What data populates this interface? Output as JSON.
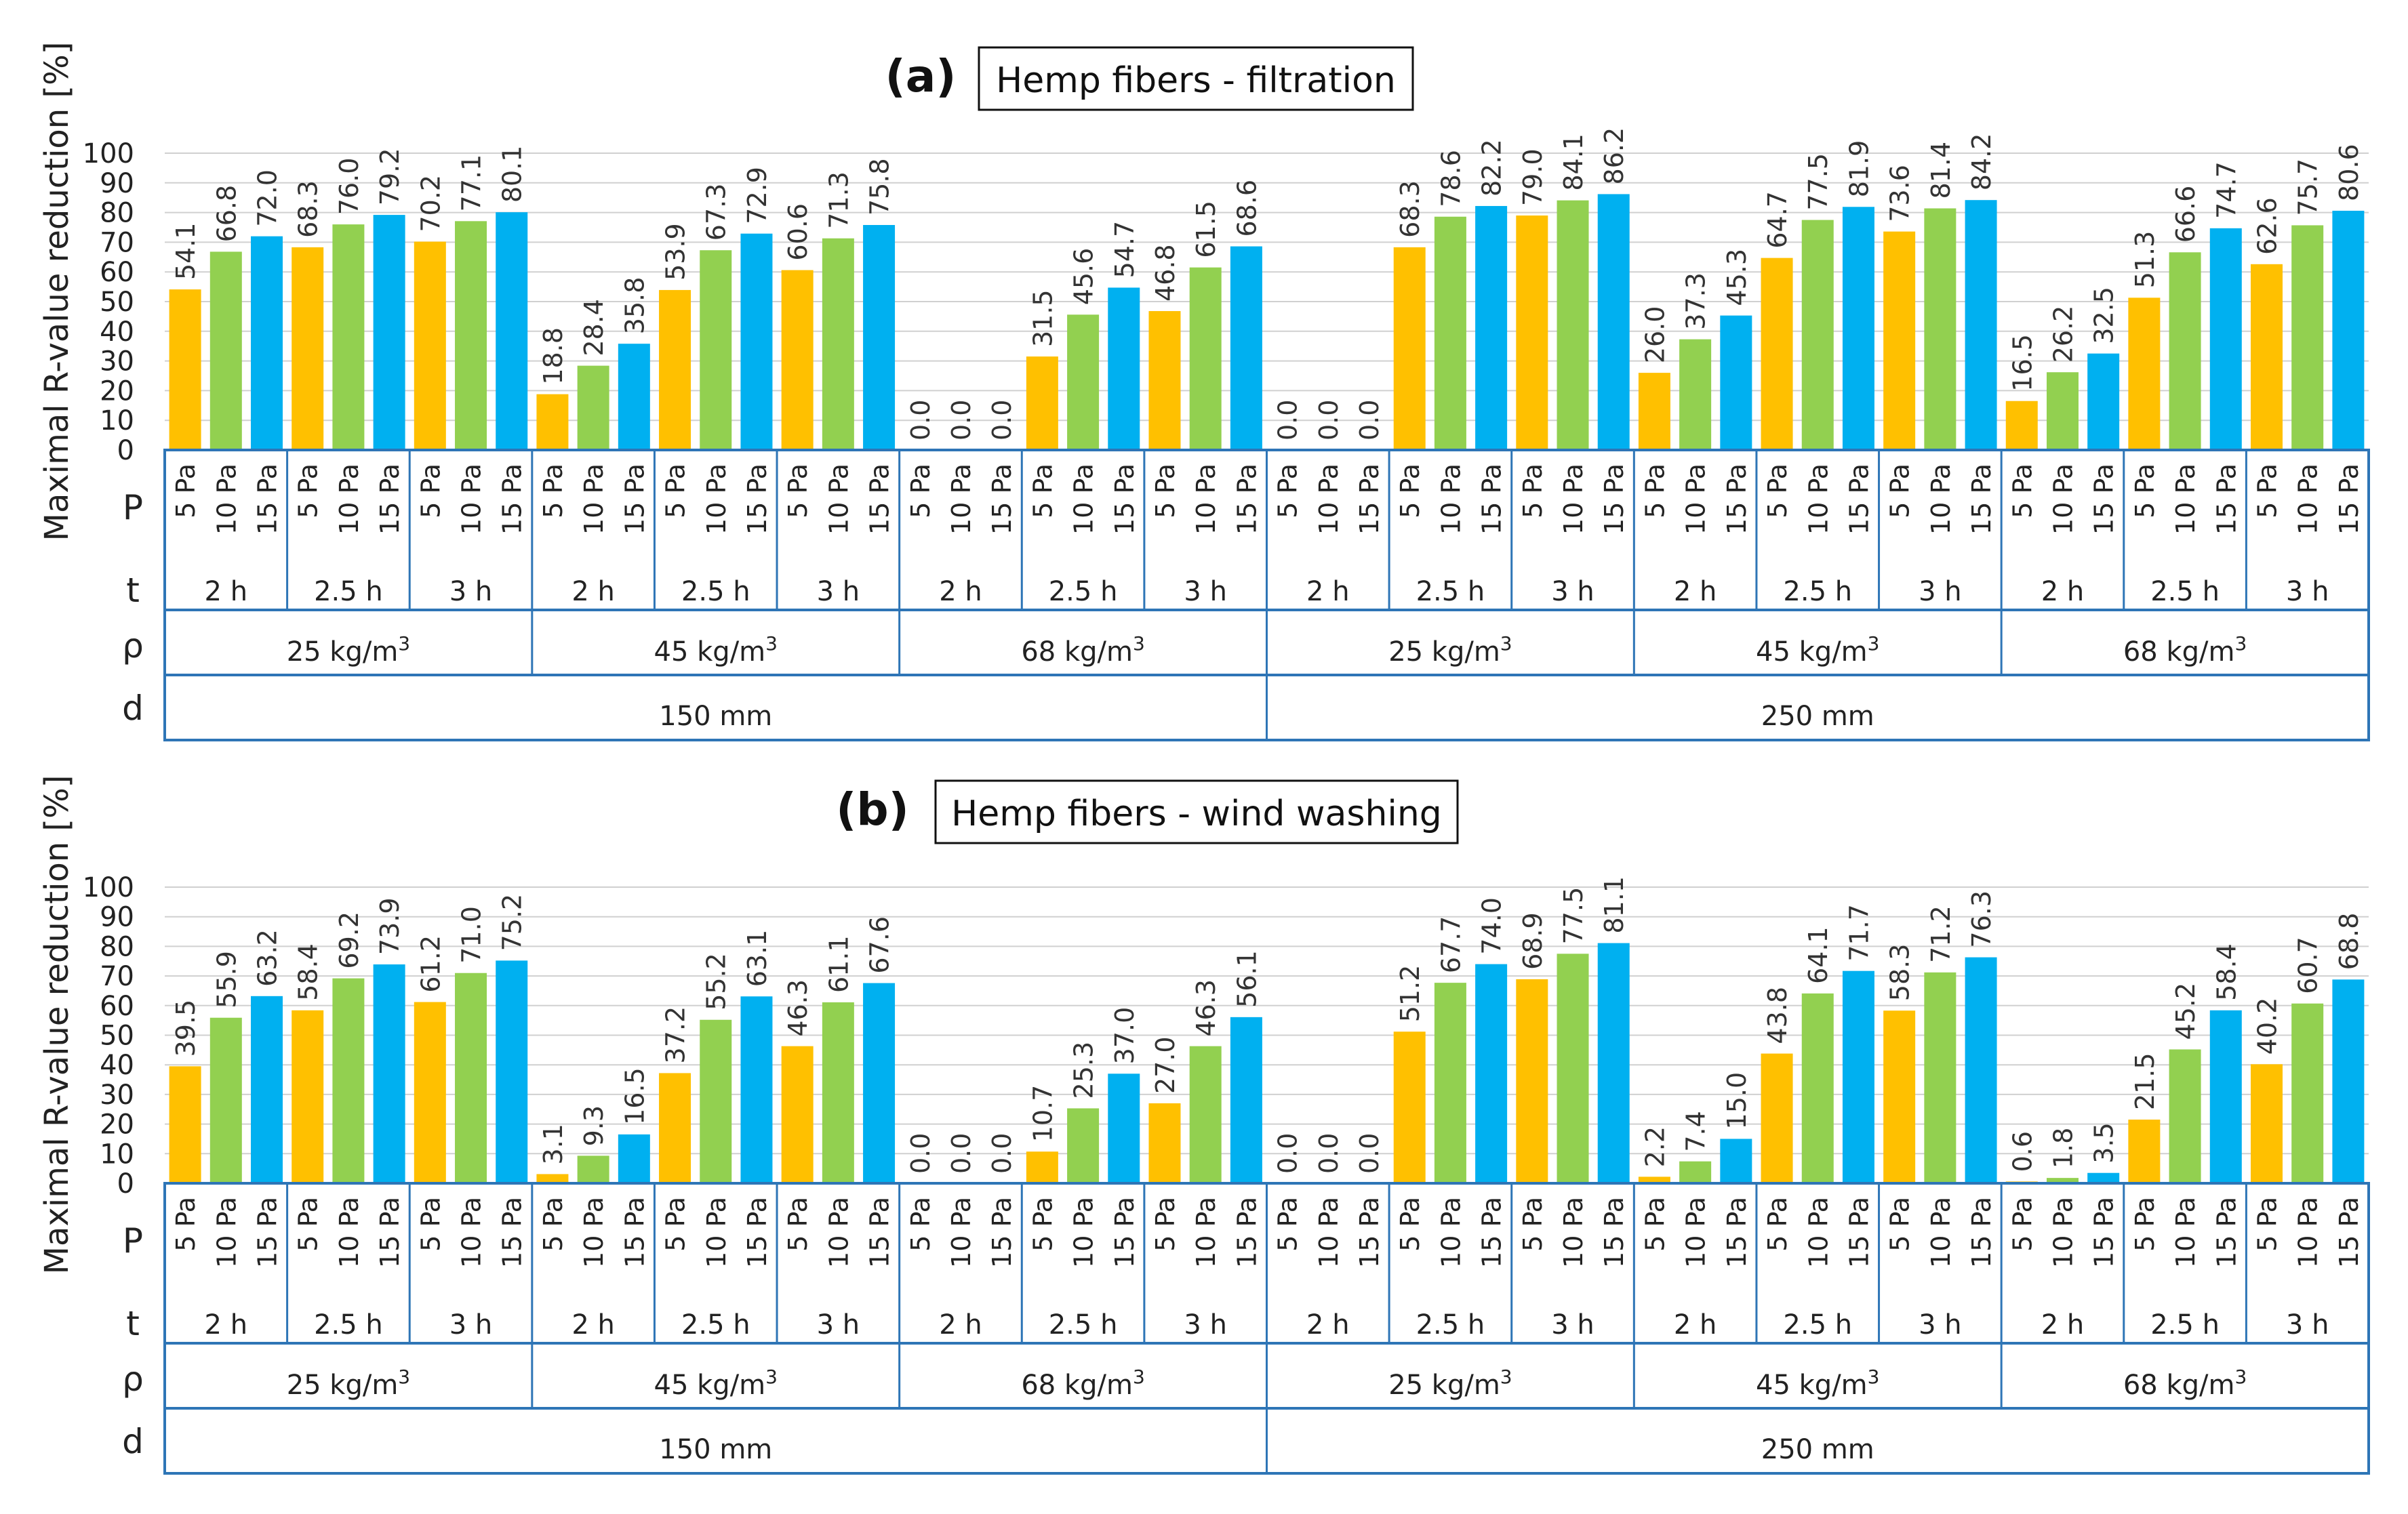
{
  "chart_data": [
    {
      "type": "bar",
      "panel_letter": "(a)",
      "title": "Hemp fibers - filtration",
      "ylabel": "Maximal R-value reduction [%]",
      "ylim": [
        0,
        100
      ],
      "yticks": [
        "0",
        "10",
        "20",
        "30",
        "40",
        "50",
        "60",
        "70",
        "80",
        "90",
        "100"
      ],
      "grid": true,
      "axis_rows": {
        "P": "P",
        "t": "t",
        "rho": "ρ",
        "d": "d"
      },
      "pressure_labels": [
        "5 Pa",
        "10 Pa",
        "15 Pa"
      ],
      "time_labels": [
        "2 h",
        "2.5 h",
        "3 h"
      ],
      "density_labels": [
        "25 kg/m",
        "45 kg/m",
        "68 kg/m"
      ],
      "density_superscript": "3",
      "thickness_labels": [
        "150 mm",
        "250 mm"
      ],
      "series_colors": {
        "5 Pa": "#FFC000",
        "10 Pa": "#92D050",
        "15 Pa": "#00B0F0"
      },
      "values": [
        54.1,
        66.8,
        72.0,
        68.3,
        76.0,
        79.2,
        70.2,
        77.1,
        80.1,
        18.8,
        28.4,
        35.8,
        53.9,
        67.3,
        72.9,
        60.6,
        71.3,
        75.8,
        0.0,
        0.0,
        0.0,
        31.5,
        45.6,
        54.7,
        46.8,
        61.5,
        68.6,
        0.0,
        0.0,
        0.0,
        68.3,
        78.6,
        82.2,
        79.0,
        84.1,
        86.2,
        26.0,
        37.3,
        45.3,
        64.7,
        77.5,
        81.9,
        73.6,
        81.4,
        84.2,
        16.5,
        26.2,
        32.5,
        51.3,
        66.6,
        74.7,
        62.6,
        75.7,
        80.6
      ],
      "labels": [
        "54.1",
        "66.8",
        "72.0",
        "68.3",
        "76.0",
        "79.2",
        "70.2",
        "77.1",
        "80.1",
        "18.8",
        "28.4",
        "35.8",
        "53.9",
        "67.3",
        "72.9",
        "60.6",
        "71.3",
        "75.8",
        "0.0",
        "0.0",
        "0.0",
        "31.5",
        "45.6",
        "54.7",
        "46.8",
        "61.5",
        "68.6",
        "0.0",
        "0.0",
        "0.0",
        "68.3",
        "78.6",
        "82.2",
        "79.0",
        "84.1",
        "86.2",
        "26.0",
        "37.3",
        "45.3",
        "64.7",
        "77.5",
        "81.9",
        "73.6",
        "81.4",
        "84.2",
        "16.5",
        "26.2",
        "32.5",
        "51.3",
        "66.6",
        "74.7",
        "62.6",
        "75.7",
        "80.6"
      ]
    },
    {
      "type": "bar",
      "panel_letter": "(b)",
      "title": "Hemp fibers - wind washing",
      "ylabel": "Maximal R-value reduction [%]",
      "ylim": [
        0,
        100
      ],
      "yticks": [
        "0",
        "10",
        "20",
        "30",
        "40",
        "50",
        "60",
        "70",
        "80",
        "90",
        "100"
      ],
      "grid": true,
      "axis_rows": {
        "P": "P",
        "t": "t",
        "rho": "ρ",
        "d": "d"
      },
      "pressure_labels": [
        "5 Pa",
        "10 Pa",
        "15 Pa"
      ],
      "time_labels": [
        "2 h",
        "2.5 h",
        "3 h"
      ],
      "density_labels": [
        "25 kg/m",
        "45 kg/m",
        "68 kg/m"
      ],
      "density_superscript": "3",
      "thickness_labels": [
        "150 mm",
        "250 mm"
      ],
      "series_colors": {
        "5 Pa": "#FFC000",
        "10 Pa": "#92D050",
        "15 Pa": "#00B0F0"
      },
      "values": [
        39.5,
        55.9,
        63.2,
        58.4,
        69.2,
        73.9,
        61.2,
        71.0,
        75.2,
        3.1,
        9.3,
        16.5,
        37.2,
        55.2,
        63.1,
        46.3,
        61.1,
        67.6,
        0.0,
        0.0,
        0.0,
        10.7,
        25.3,
        37.0,
        27.0,
        46.3,
        56.1,
        0.0,
        0.0,
        0.0,
        51.2,
        67.7,
        74.0,
        68.9,
        77.5,
        81.1,
        2.2,
        7.4,
        15.0,
        43.8,
        64.1,
        71.7,
        58.3,
        71.2,
        76.3,
        0.6,
        1.8,
        3.5,
        21.5,
        45.2,
        58.4,
        40.2,
        60.7,
        68.8
      ],
      "labels": [
        "39.5",
        "55.9",
        "63.2",
        "58.4",
        "69.2",
        "73.9",
        "61.2",
        "71.0",
        "75.2",
        "3.1",
        "9.3",
        "16.5",
        "37.2",
        "55.2",
        "63.1",
        "46.3",
        "61.1",
        "67.6",
        "0.0",
        "0.0",
        "0.0",
        "10.7",
        "25.3",
        "37.0",
        "27.0",
        "46.3",
        "56.1",
        "0.0",
        "0.0",
        "0.0",
        "51.2",
        "67.7",
        "74.0",
        "68.9",
        "77.5",
        "81.1",
        "2.2",
        "7.4",
        "15.0",
        "43.8",
        "64.1",
        "71.7",
        "58.3",
        "71.2",
        "76.3",
        "0.6",
        "1.8",
        "3.5",
        "21.5",
        "45.2",
        "58.4",
        "40.2",
        "60.7",
        "68.8"
      ]
    }
  ]
}
